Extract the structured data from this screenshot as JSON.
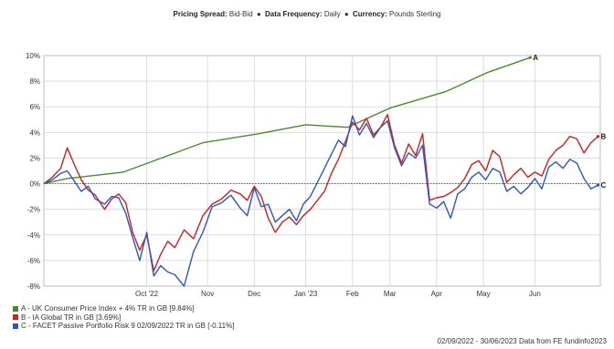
{
  "header": {
    "spread_label": "Pricing Spread:",
    "spread_value": "Bid-Bid",
    "frequency_label": "Data Frequency:",
    "frequency_value": "Daily",
    "currency_label": "Currency:",
    "currency_value": "Pounds Sterling",
    "separator": "●"
  },
  "legend": [
    {
      "label": "A - UK Consumer Price Index + 4% TR in GB [9.84%]",
      "color": "#4a8a2a"
    },
    {
      "label": "B - IA Global TR in GB [3.69%]",
      "color": "#cc1f1f"
    },
    {
      "label": "C - FACET Passive Portfolio Risk 9 02/09/2022 TR in GB [-0.11%]",
      "color": "#2f55c4"
    }
  ],
  "source_text": "02/09/2022 - 30/06/2023 Data from FE fundinfo2023",
  "chart_data": {
    "type": "line",
    "x_ticks": [
      "Oct '22",
      "Nov",
      "Dec",
      "Jan '23",
      "Feb",
      "Mar",
      "Apr",
      "May",
      "Jun"
    ],
    "x_tick_pos": [
      2.2,
      3.5,
      4.5,
      5.6,
      6.6,
      7.4,
      8.4,
      9.4,
      10.5
    ],
    "xlim": [
      0,
      11.9
    ],
    "ylim": [
      -8,
      10
    ],
    "y_ticks": [
      -8,
      -6,
      -4,
      -2,
      0,
      2,
      4,
      6,
      8,
      10
    ],
    "y_tick_labels": [
      "-8%",
      "-6%",
      "-4%",
      "-2%",
      "0%",
      "2%",
      "4%",
      "6%",
      "8%",
      "10%"
    ],
    "grid": true,
    "series": [
      {
        "name": "A",
        "end_label": "A",
        "color": "#4a8a2a",
        "x": [
          0,
          0.5,
          1.7,
          3.4,
          4.6,
          5.6,
          6.5,
          7.4,
          8.6,
          9.5,
          10.4
        ],
        "y": [
          0,
          0.4,
          0.9,
          3.2,
          3.9,
          4.6,
          4.4,
          5.9,
          7.2,
          8.7,
          9.84
        ]
      },
      {
        "name": "B",
        "end_label": "B",
        "color": "#cc1f1f",
        "x": [
          0,
          0.18,
          0.36,
          0.5,
          0.65,
          0.8,
          0.95,
          1.1,
          1.3,
          1.45,
          1.6,
          1.75,
          1.9,
          2.05,
          2.2,
          2.35,
          2.5,
          2.65,
          2.8,
          3.0,
          3.2,
          3.4,
          3.6,
          3.8,
          4.0,
          4.2,
          4.35,
          4.5,
          4.65,
          4.8,
          4.95,
          5.1,
          5.25,
          5.4,
          5.55,
          5.7,
          5.85,
          6.0,
          6.15,
          6.3,
          6.45,
          6.6,
          6.75,
          6.9,
          7.05,
          7.2,
          7.35,
          7.5,
          7.65,
          7.8,
          7.95,
          8.1,
          8.25,
          8.4,
          8.55,
          8.7,
          8.85,
          9.0,
          9.15,
          9.3,
          9.45,
          9.6,
          9.75,
          9.9,
          10.05,
          10.2,
          10.35,
          10.5,
          10.65,
          10.8,
          10.95,
          11.1,
          11.25,
          11.4,
          11.55,
          11.7,
          11.85
        ],
        "y": [
          0,
          0.5,
          1.2,
          2.8,
          1.5,
          0.3,
          -0.5,
          -0.9,
          -2.0,
          -1.2,
          -0.8,
          -1.5,
          -3.8,
          -5.2,
          -4.0,
          -6.8,
          -5.5,
          -4.5,
          -5.0,
          -3.6,
          -4.3,
          -2.5,
          -1.6,
          -1.2,
          -0.5,
          -0.8,
          -1.3,
          -0.2,
          -1.0,
          -2.7,
          -3.8,
          -3.0,
          -2.6,
          -3.2,
          -2.5,
          -2.0,
          -1.3,
          -0.6,
          0.8,
          1.9,
          3.3,
          4.8,
          4.2,
          5.1,
          3.8,
          4.4,
          5.4,
          3.0,
          1.6,
          3.1,
          2.2,
          3.9,
          -1.3,
          -1.1,
          -1.0,
          -0.7,
          -0.3,
          0.4,
          1.5,
          1.8,
          1.0,
          2.6,
          2.1,
          0.1,
          0.7,
          1.2,
          0.5,
          0.9,
          0.6,
          1.9,
          2.6,
          3.0,
          3.7,
          3.5,
          2.4,
          3.2,
          3.69
        ]
      },
      {
        "name": "C",
        "end_label": "C",
        "color": "#2f55c4",
        "x": [
          0,
          0.18,
          0.36,
          0.5,
          0.65,
          0.8,
          0.95,
          1.1,
          1.3,
          1.45,
          1.6,
          1.75,
          1.9,
          2.05,
          2.2,
          2.35,
          2.5,
          2.65,
          2.8,
          3.0,
          3.2,
          3.4,
          3.6,
          3.8,
          4.0,
          4.2,
          4.35,
          4.5,
          4.65,
          4.8,
          4.95,
          5.1,
          5.25,
          5.4,
          5.55,
          5.7,
          5.85,
          6.0,
          6.15,
          6.3,
          6.45,
          6.6,
          6.75,
          6.9,
          7.05,
          7.2,
          7.35,
          7.5,
          7.65,
          7.8,
          7.95,
          8.1,
          8.25,
          8.4,
          8.55,
          8.7,
          8.85,
          9.0,
          9.15,
          9.3,
          9.45,
          9.6,
          9.75,
          9.9,
          10.05,
          10.2,
          10.35,
          10.5,
          10.65,
          10.8,
          10.95,
          11.1,
          11.25,
          11.4,
          11.55,
          11.7,
          11.85
        ],
        "y": [
          0,
          0.3,
          0.8,
          1.0,
          0.2,
          -0.6,
          -0.2,
          -1.2,
          -1.6,
          -1.0,
          -1.1,
          -2.3,
          -4.2,
          -6.0,
          -3.8,
          -7.2,
          -6.4,
          -6.9,
          -7.1,
          -8.0,
          -5.3,
          -3.8,
          -1.8,
          -1.5,
          -0.9,
          -1.9,
          -2.5,
          -0.3,
          -1.8,
          -1.6,
          -3.0,
          -2.5,
          -2.0,
          -2.9,
          -1.6,
          -1.0,
          0.1,
          1.2,
          2.3,
          3.4,
          2.9,
          5.3,
          3.8,
          4.7,
          3.6,
          4.4,
          4.9,
          2.8,
          1.4,
          2.4,
          2.0,
          3.0,
          -1.6,
          -1.9,
          -1.4,
          -2.7,
          -0.8,
          -0.4,
          0.5,
          0.9,
          0.3,
          1.2,
          0.9,
          -0.6,
          -0.2,
          -0.8,
          -0.3,
          0.4,
          -0.4,
          1.3,
          1.7,
          1.2,
          1.9,
          1.6,
          0.4,
          -0.4,
          -0.11
        ]
      }
    ]
  }
}
